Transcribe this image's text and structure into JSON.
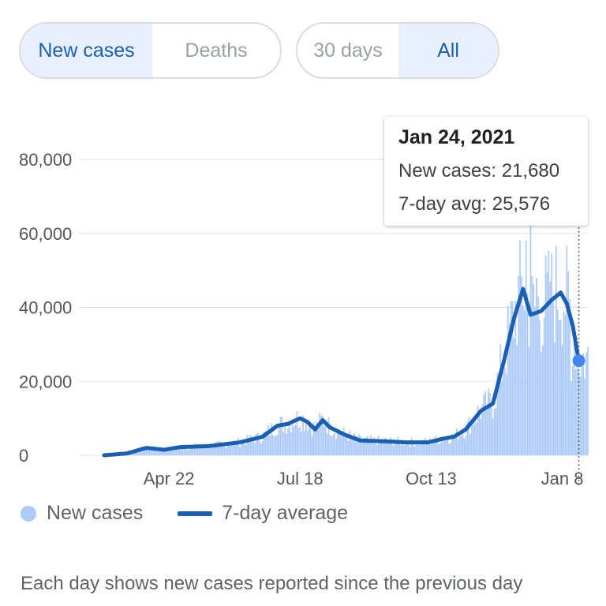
{
  "controls": {
    "metric_tabs": [
      {
        "label": "New cases",
        "active": true
      },
      {
        "label": "Deaths",
        "active": false
      }
    ],
    "range_tabs": [
      {
        "label": "30 days",
        "active": false
      },
      {
        "label": "All",
        "active": true
      }
    ]
  },
  "tooltip": {
    "date": "Jan 24, 2021",
    "new_cases": "New cases: 21,680",
    "avg": "7-day avg: 25,576"
  },
  "legend": {
    "new_cases": "New cases",
    "avg": "7-day average"
  },
  "footnote": "Each day shows new cases reported since the previous day",
  "colors": {
    "bars": "#aecbfa",
    "line": "#1a5fb4",
    "active_tab_bg": "#e8f0fe",
    "active_tab_text": "#1a5fb4",
    "inactive_tab_text": "#9aa0a6",
    "grid": "#e0e0e0"
  },
  "chart_data": {
    "type": "bar",
    "overlay_type": "line",
    "yticks": [
      "0",
      "20,000",
      "40,000",
      "60,000",
      "80,000"
    ],
    "ytick_values": [
      0,
      20000,
      40000,
      60000,
      80000
    ],
    "xticks": [
      "Apr 22",
      "Jul 18",
      "Oct 13",
      "Jan 8"
    ],
    "xtick_index": [
      43,
      130,
      217,
      304
    ],
    "ylim": [
      0,
      80000
    ],
    "num_days": 322,
    "grid": true,
    "legend_position": "bottom",
    "series": [
      {
        "name": "New cases",
        "kind": "bar",
        "values_note": "daily values approximated by 7-day average with daily noise",
        "spikes": [
          {
            "index": 280,
            "value": 58000
          },
          {
            "index": 283,
            "value": 63000
          },
          {
            "index": 287,
            "value": 48000
          },
          {
            "index": 296,
            "value": 47000
          },
          {
            "index": 310,
            "value": 20000
          }
        ]
      },
      {
        "name": "7-day average",
        "kind": "line",
        "keypoints": [
          [
            0,
            0
          ],
          [
            15,
            500
          ],
          [
            28,
            2000
          ],
          [
            40,
            1500
          ],
          [
            50,
            2200
          ],
          [
            70,
            2500
          ],
          [
            90,
            3500
          ],
          [
            105,
            5000
          ],
          [
            115,
            8000
          ],
          [
            122,
            8500
          ],
          [
            130,
            10000
          ],
          [
            135,
            9000
          ],
          [
            140,
            7000
          ],
          [
            145,
            9500
          ],
          [
            150,
            7500
          ],
          [
            160,
            5500
          ],
          [
            170,
            4000
          ],
          [
            185,
            3800
          ],
          [
            200,
            3500
          ],
          [
            215,
            3500
          ],
          [
            225,
            4500
          ],
          [
            232,
            5000
          ],
          [
            240,
            7000
          ],
          [
            250,
            12000
          ],
          [
            258,
            14000
          ],
          [
            265,
            25000
          ],
          [
            272,
            37000
          ],
          [
            278,
            45000
          ],
          [
            283,
            38000
          ],
          [
            290,
            39000
          ],
          [
            297,
            42000
          ],
          [
            303,
            44000
          ],
          [
            307,
            41000
          ],
          [
            311,
            35000
          ],
          [
            315,
            25576
          ]
        ],
        "last_point": {
          "index": 315,
          "value": 25576
        }
      }
    ]
  }
}
